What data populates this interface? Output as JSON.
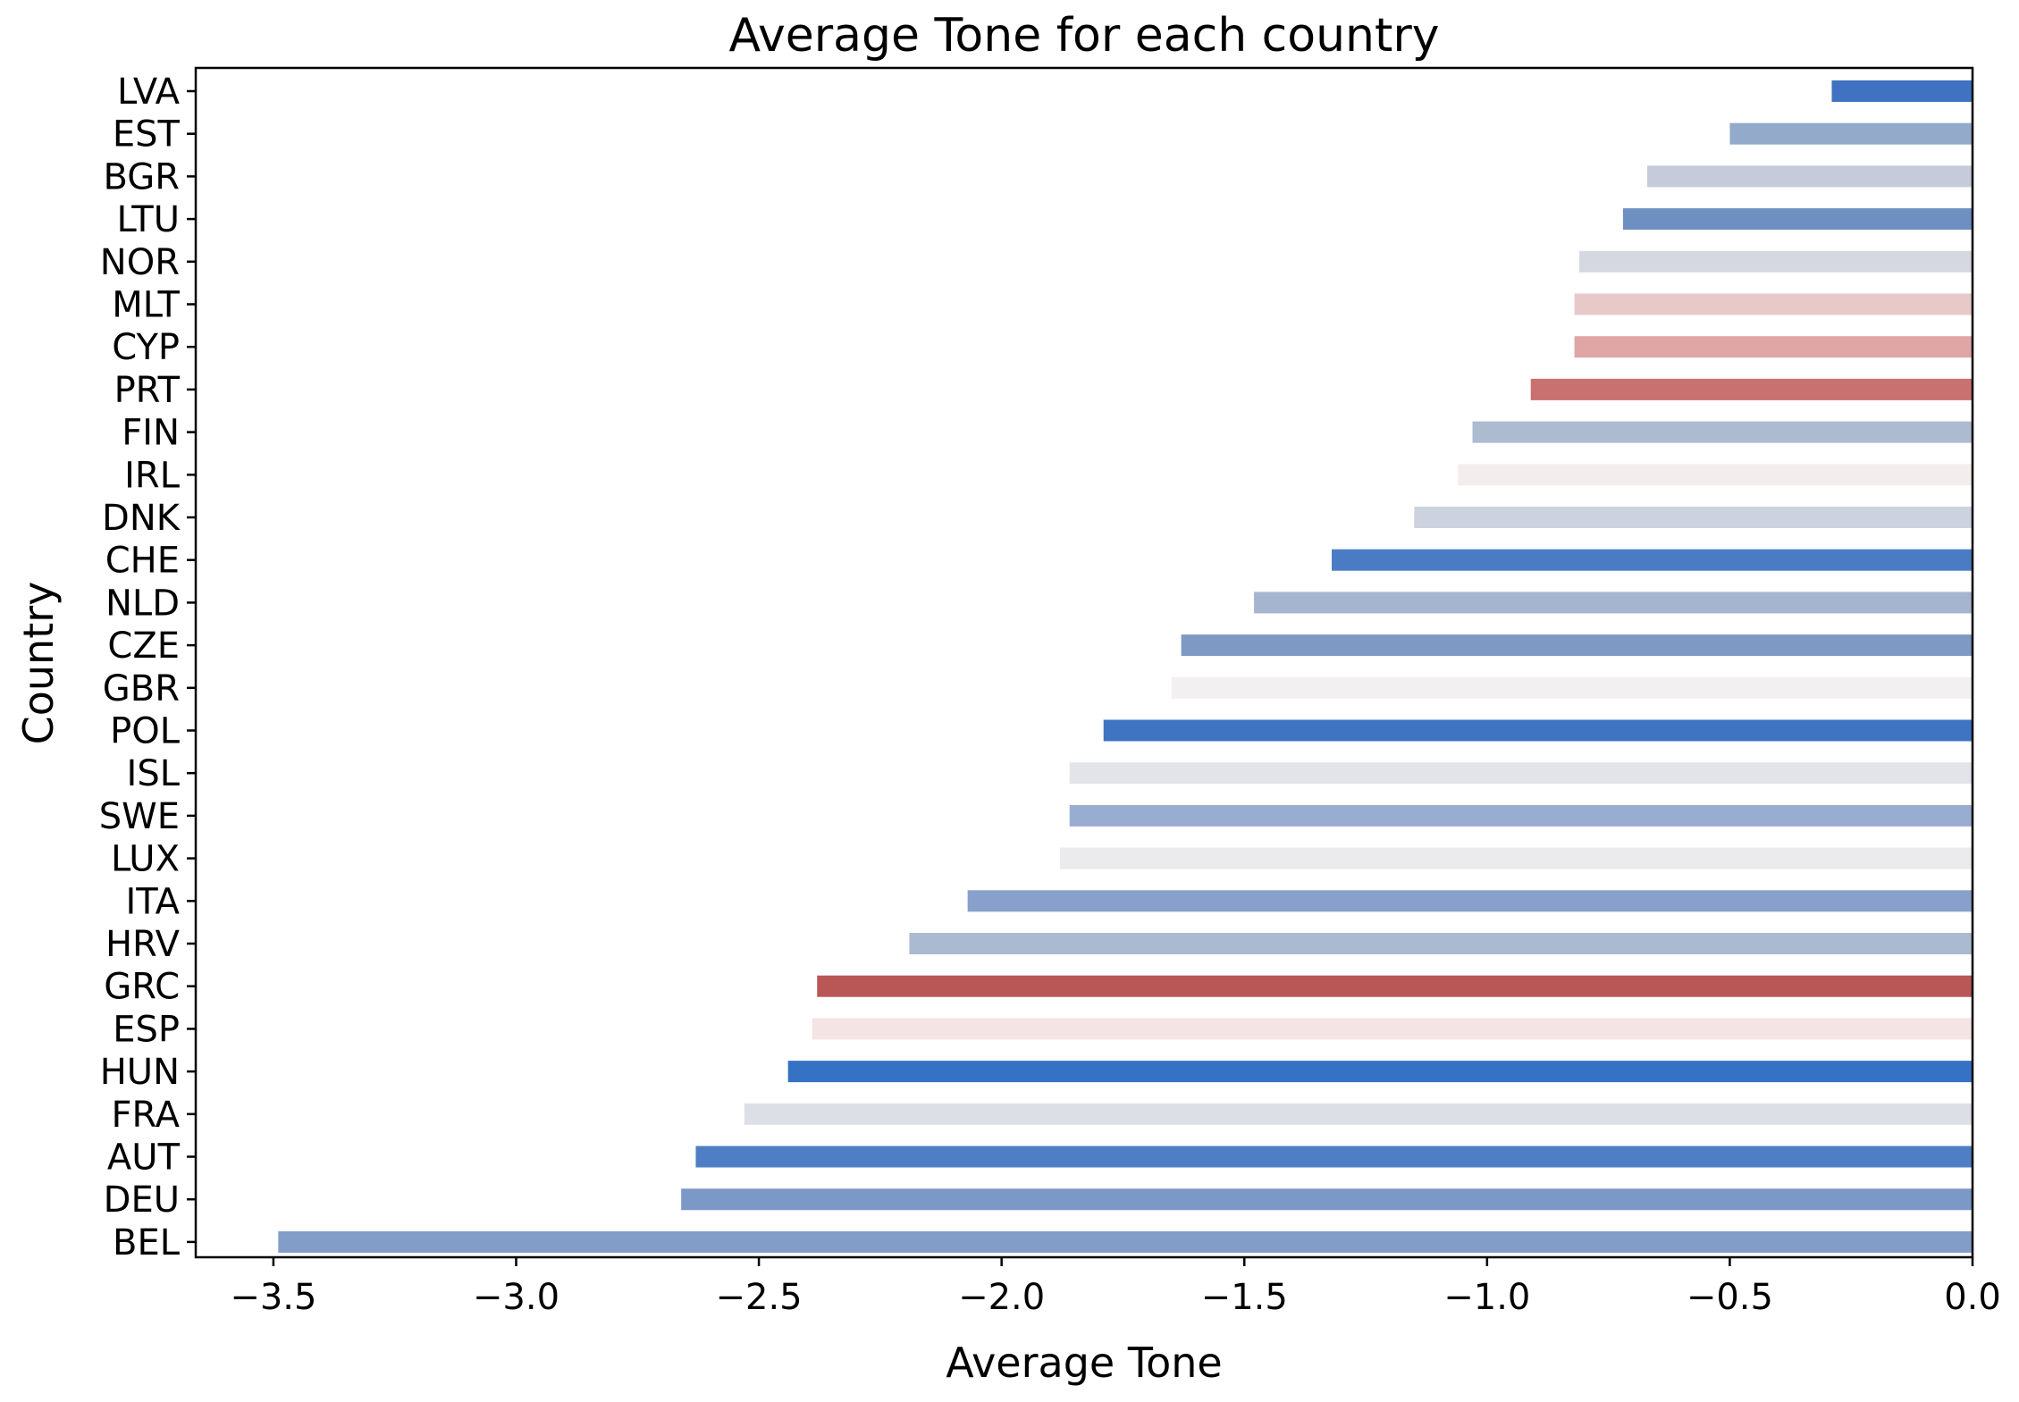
{
  "chart_data": {
    "type": "bar",
    "orientation": "horizontal",
    "title": "Average Tone for each country",
    "xlabel": "Average Tone",
    "ylabel": "Country",
    "xlim": [
      -3.66,
      0.0
    ],
    "xticks": [
      -3.5,
      -3.0,
      -2.5,
      -2.0,
      -1.5,
      -1.0,
      -0.5,
      0.0
    ],
    "xtick_labels": [
      "−3.5",
      "−3.0",
      "−2.5",
      "−2.0",
      "−1.5",
      "−1.0",
      "−0.5",
      "0.0"
    ],
    "grid": false,
    "legend": "none",
    "categories": [
      "LVA",
      "EST",
      "BGR",
      "LTU",
      "NOR",
      "MLT",
      "CYP",
      "PRT",
      "FIN",
      "IRL",
      "DNK",
      "CHE",
      "NLD",
      "CZE",
      "GBR",
      "POL",
      "ISL",
      "SWE",
      "LUX",
      "ITA",
      "HRV",
      "GRC",
      "ESP",
      "HUN",
      "FRA",
      "AUT",
      "DEU",
      "BEL"
    ],
    "values": [
      -0.29,
      -0.5,
      -0.67,
      -0.72,
      -0.81,
      -0.82,
      -0.82,
      -0.91,
      -1.03,
      -1.06,
      -1.15,
      -1.32,
      -1.48,
      -1.63,
      -1.65,
      -1.79,
      -1.86,
      -1.86,
      -1.88,
      -2.07,
      -2.19,
      -2.38,
      -2.39,
      -2.44,
      -2.53,
      -2.63,
      -2.66,
      -3.49
    ],
    "colors": [
      "#3f72c0",
      "#94aacb",
      "#c5cbdb",
      "#6e8fc1",
      "#d5d8e1",
      "#e8c8c8",
      "#e0a6a6",
      "#c97070",
      "#adbbd1",
      "#f4eded",
      "#cdd2df",
      "#4a7cc6",
      "#a5b5cf",
      "#7d99c4",
      "#f2f0f0",
      "#3f74c2",
      "#e3e4e9",
      "#99add0",
      "#ebebee",
      "#88a0cb",
      "#aabad0",
      "#b95656",
      "#f4e4e4",
      "#3672c4",
      "#dcdfe6",
      "#4e7fc4",
      "#7b98c7",
      "#829dc7"
    ]
  }
}
